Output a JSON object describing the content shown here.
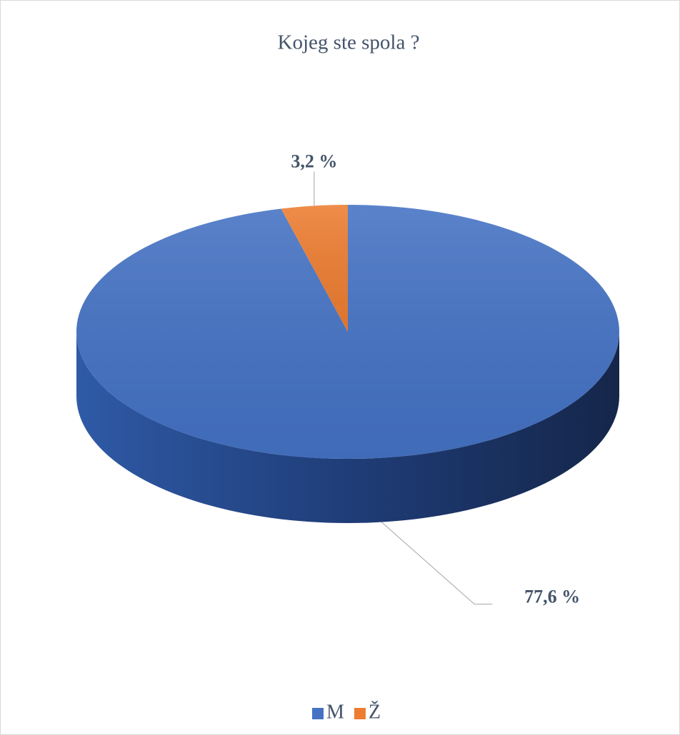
{
  "chart_data": {
    "type": "pie",
    "title": "Kojeg ste spola ?",
    "categories": [
      "M",
      "Ž"
    ],
    "values": [
      77.6,
      3.2
    ],
    "value_labels": [
      "77,6 %",
      "3,2 %"
    ],
    "colors": [
      "#4472c4",
      "#ed7d31"
    ],
    "legend": "bottom"
  }
}
